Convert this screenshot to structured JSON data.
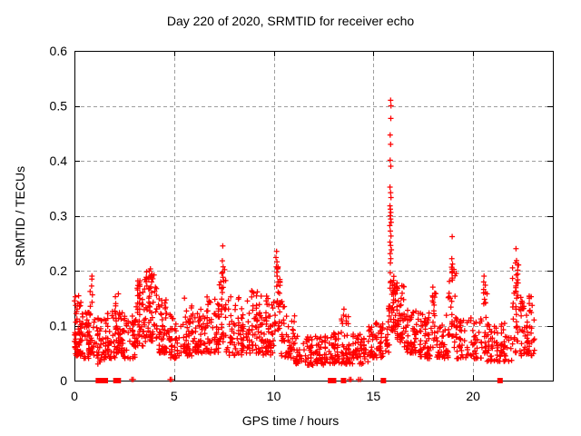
{
  "page": {
    "background": "#ffffff"
  },
  "chart_data": {
    "type": "scatter",
    "title": "Day 220 of 2020, SRMTID for receiver echo",
    "xlabel": "GPS time / hours",
    "ylabel": "SRMTID / TECUs",
    "xlim": [
      0,
      24
    ],
    "ylim": [
      0,
      0.6
    ],
    "xtick_values": [
      0,
      5,
      10,
      15,
      20
    ],
    "xtick_labels": [
      "0",
      "5",
      "10",
      "15",
      "20"
    ],
    "ytick_values": [
      0,
      0.1,
      0.2,
      0.3,
      0.4,
      0.5,
      0.6
    ],
    "ytick_labels": [
      "0",
      "0.1",
      "0.2",
      "0.3",
      "0.4",
      "0.5",
      "0.6"
    ],
    "grid": {
      "visible": true,
      "x_at": [
        5,
        10,
        15,
        20
      ],
      "y_at": [
        0.1,
        0.2,
        0.3,
        0.4,
        0.5
      ],
      "color": "#9e9e9e",
      "dash": "4 3"
    },
    "axis_color": "#000000",
    "marker": {
      "shape": "plus",
      "color": "#ff0000",
      "size": 3
    },
    "legend": {
      "visible": false
    },
    "point_bands": [
      [
        0.0,
        0.35,
        55,
        0.045,
        0.155,
        1.6
      ],
      [
        0.35,
        0.75,
        45,
        0.04,
        0.125,
        1.7
      ],
      [
        0.75,
        0.95,
        18,
        0.05,
        0.19,
        1.5
      ],
      [
        0.95,
        1.55,
        40,
        0.03,
        0.115,
        1.7
      ],
      [
        1.55,
        2.05,
        45,
        0.04,
        0.13,
        1.6
      ],
      [
        2.05,
        2.45,
        50,
        0.05,
        0.16,
        1.5
      ],
      [
        2.45,
        3.05,
        45,
        0.04,
        0.12,
        1.6
      ],
      [
        3.05,
        3.55,
        55,
        0.06,
        0.185,
        1.3
      ],
      [
        3.55,
        4.15,
        65,
        0.07,
        0.21,
        1.3
      ],
      [
        4.15,
        4.65,
        50,
        0.05,
        0.15,
        1.6
      ],
      [
        4.65,
        5.25,
        45,
        0.04,
        0.12,
        1.7
      ],
      [
        5.25,
        6.05,
        55,
        0.045,
        0.14,
        1.6
      ],
      [
        6.05,
        6.65,
        50,
        0.05,
        0.13,
        1.6
      ],
      [
        6.65,
        7.25,
        55,
        0.05,
        0.155,
        1.5
      ],
      [
        7.25,
        7.6,
        30,
        0.07,
        0.21,
        1.3
      ],
      [
        7.6,
        8.6,
        65,
        0.045,
        0.155,
        1.6
      ],
      [
        8.6,
        9.4,
        65,
        0.05,
        0.165,
        1.6
      ],
      [
        9.4,
        10.0,
        55,
        0.045,
        0.155,
        1.6
      ],
      [
        10.0,
        10.35,
        28,
        0.09,
        0.21,
        1.2
      ],
      [
        10.35,
        11.05,
        50,
        0.04,
        0.145,
        1.7
      ],
      [
        11.05,
        12.55,
        95,
        0.028,
        0.082,
        1.5
      ],
      [
        12.55,
        13.35,
        55,
        0.03,
        0.09,
        1.5
      ],
      [
        13.35,
        13.75,
        35,
        0.03,
        0.125,
        1.6
      ],
      [
        13.75,
        14.75,
        65,
        0.03,
        0.09,
        1.5
      ],
      [
        14.75,
        15.55,
        60,
        0.04,
        0.105,
        1.5
      ],
      [
        15.55,
        15.8,
        22,
        0.05,
        0.145,
        1.4
      ],
      [
        15.8,
        16.05,
        30,
        0.09,
        0.21,
        1.1
      ],
      [
        16.05,
        16.55,
        60,
        0.07,
        0.185,
        1.4
      ],
      [
        16.55,
        17.35,
        60,
        0.05,
        0.135,
        1.6
      ],
      [
        17.35,
        17.95,
        50,
        0.04,
        0.125,
        1.6
      ],
      [
        17.95,
        18.15,
        16,
        0.06,
        0.165,
        1.3
      ],
      [
        18.15,
        18.75,
        45,
        0.04,
        0.12,
        1.6
      ],
      [
        18.75,
        19.15,
        32,
        0.06,
        0.21,
        1.4
      ],
      [
        19.15,
        20.45,
        75,
        0.04,
        0.115,
        1.6
      ],
      [
        20.45,
        20.7,
        18,
        0.05,
        0.185,
        1.4
      ],
      [
        20.7,
        21.95,
        75,
        0.035,
        0.105,
        1.6
      ],
      [
        21.95,
        22.35,
        35,
        0.05,
        0.22,
        1.5
      ],
      [
        22.35,
        23.1,
        65,
        0.045,
        0.155,
        1.5
      ]
    ],
    "spike_points": [
      [
        15.86,
        0.51
      ],
      [
        15.88,
        0.5
      ],
      [
        15.87,
        0.477
      ],
      [
        15.84,
        0.447
      ],
      [
        15.86,
        0.43
      ],
      [
        15.84,
        0.401
      ],
      [
        15.87,
        0.39
      ],
      [
        15.83,
        0.352
      ],
      [
        15.86,
        0.342
      ],
      [
        15.88,
        0.333
      ],
      [
        15.83,
        0.318
      ],
      [
        15.85,
        0.312
      ],
      [
        15.87,
        0.306
      ],
      [
        15.84,
        0.3
      ],
      [
        15.86,
        0.294
      ],
      [
        15.89,
        0.288
      ],
      [
        15.82,
        0.282
      ],
      [
        15.85,
        0.272
      ],
      [
        15.88,
        0.263
      ],
      [
        15.83,
        0.252
      ],
      [
        15.86,
        0.246
      ],
      [
        15.9,
        0.238
      ],
      [
        15.84,
        0.231
      ],
      [
        15.87,
        0.222
      ],
      [
        15.85,
        0.214
      ],
      [
        7.44,
        0.245
      ],
      [
        7.42,
        0.218
      ],
      [
        7.46,
        0.207
      ],
      [
        7.43,
        0.197
      ],
      [
        7.45,
        0.188
      ],
      [
        10.14,
        0.235
      ],
      [
        10.11,
        0.224
      ],
      [
        10.16,
        0.216
      ],
      [
        10.13,
        0.207
      ],
      [
        10.15,
        0.197
      ],
      [
        10.17,
        0.19
      ],
      [
        0.88,
        0.19
      ],
      [
        0.86,
        0.172
      ],
      [
        0.9,
        0.156
      ],
      [
        18.95,
        0.262
      ],
      [
        18.93,
        0.222
      ],
      [
        18.97,
        0.212
      ],
      [
        18.94,
        0.196
      ],
      [
        18.96,
        0.183
      ],
      [
        22.15,
        0.24
      ],
      [
        22.13,
        0.214
      ],
      [
        22.17,
        0.192
      ],
      [
        22.14,
        0.172
      ],
      [
        22.16,
        0.162
      ],
      [
        20.55,
        0.19
      ],
      [
        20.53,
        0.166
      ],
      [
        20.57,
        0.148
      ],
      [
        13.52,
        0.13
      ],
      [
        13.5,
        0.119
      ],
      [
        17.98,
        0.17
      ],
      [
        17.96,
        0.154
      ],
      [
        18.0,
        0.142
      ],
      [
        5.52,
        0.15
      ],
      [
        3.62,
        0.198
      ],
      [
        3.6,
        0.188
      ]
    ],
    "zero_square_hours": [
      1.2,
      1.32,
      1.55,
      2.08,
      2.2,
      12.85,
      13.0,
      13.5,
      15.5,
      21.35
    ],
    "zero_plus_hours": [
      2.88,
      2.95,
      4.8,
      4.87,
      13.8,
      13.87,
      14.25,
      14.35
    ]
  }
}
